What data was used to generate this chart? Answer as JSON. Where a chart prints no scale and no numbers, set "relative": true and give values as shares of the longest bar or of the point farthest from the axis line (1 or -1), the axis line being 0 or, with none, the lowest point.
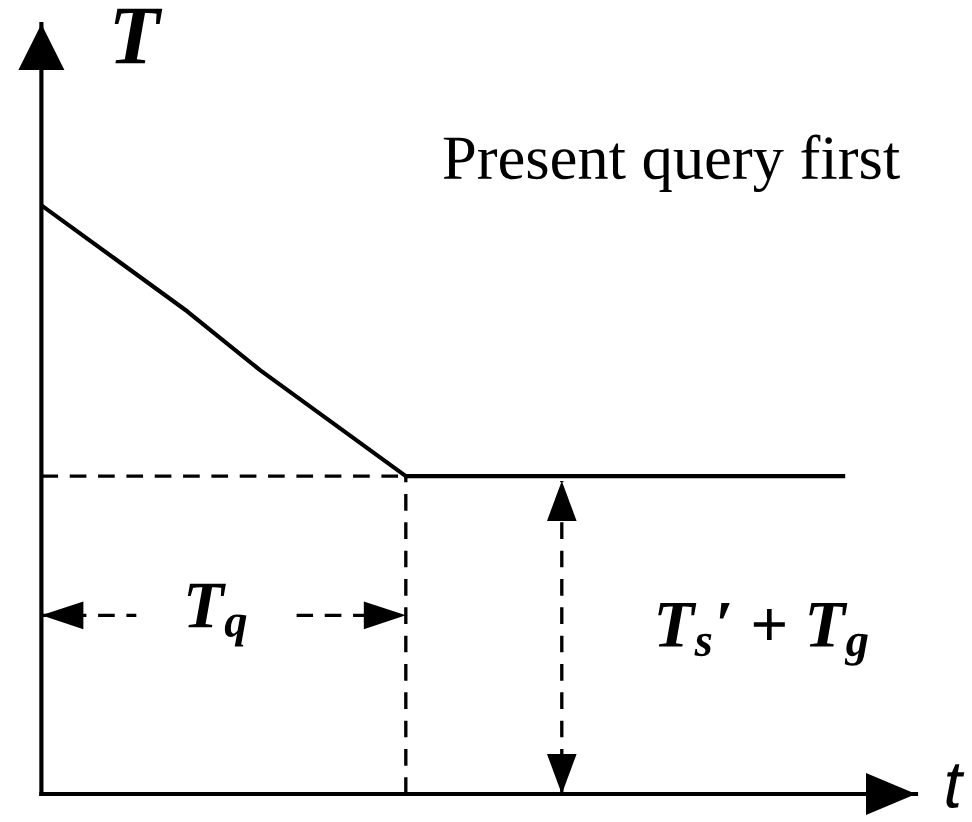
{
  "chart_data": {
    "type": "line",
    "relative": true,
    "xlabel": "t",
    "ylabel": "T",
    "annotations": [
      "Present query first",
      "T$_{q}$",
      "T$_{s}$′ + T$_{g}$"
    ],
    "categories": [
      null,
      null,
      null,
      null,
      null,
      null,
      null,
      null,
      null,
      null,
      null,
      null
    ],
    "series": [
      {
        "color": "#000000",
        "line_style": "solid",
        "values": [
          1,
          0.91,
          0.82,
          0.72,
          0.63,
          0.54,
          0.54,
          0.54,
          0.54,
          0.54,
          0.54,
          0.54
        ]
      }
    ],
    "ref_lines": [
      {
        "axis": "y",
        "value": 0.54,
        "line_style": "dashed",
        "color": "#000000"
      }
    ]
  }
}
